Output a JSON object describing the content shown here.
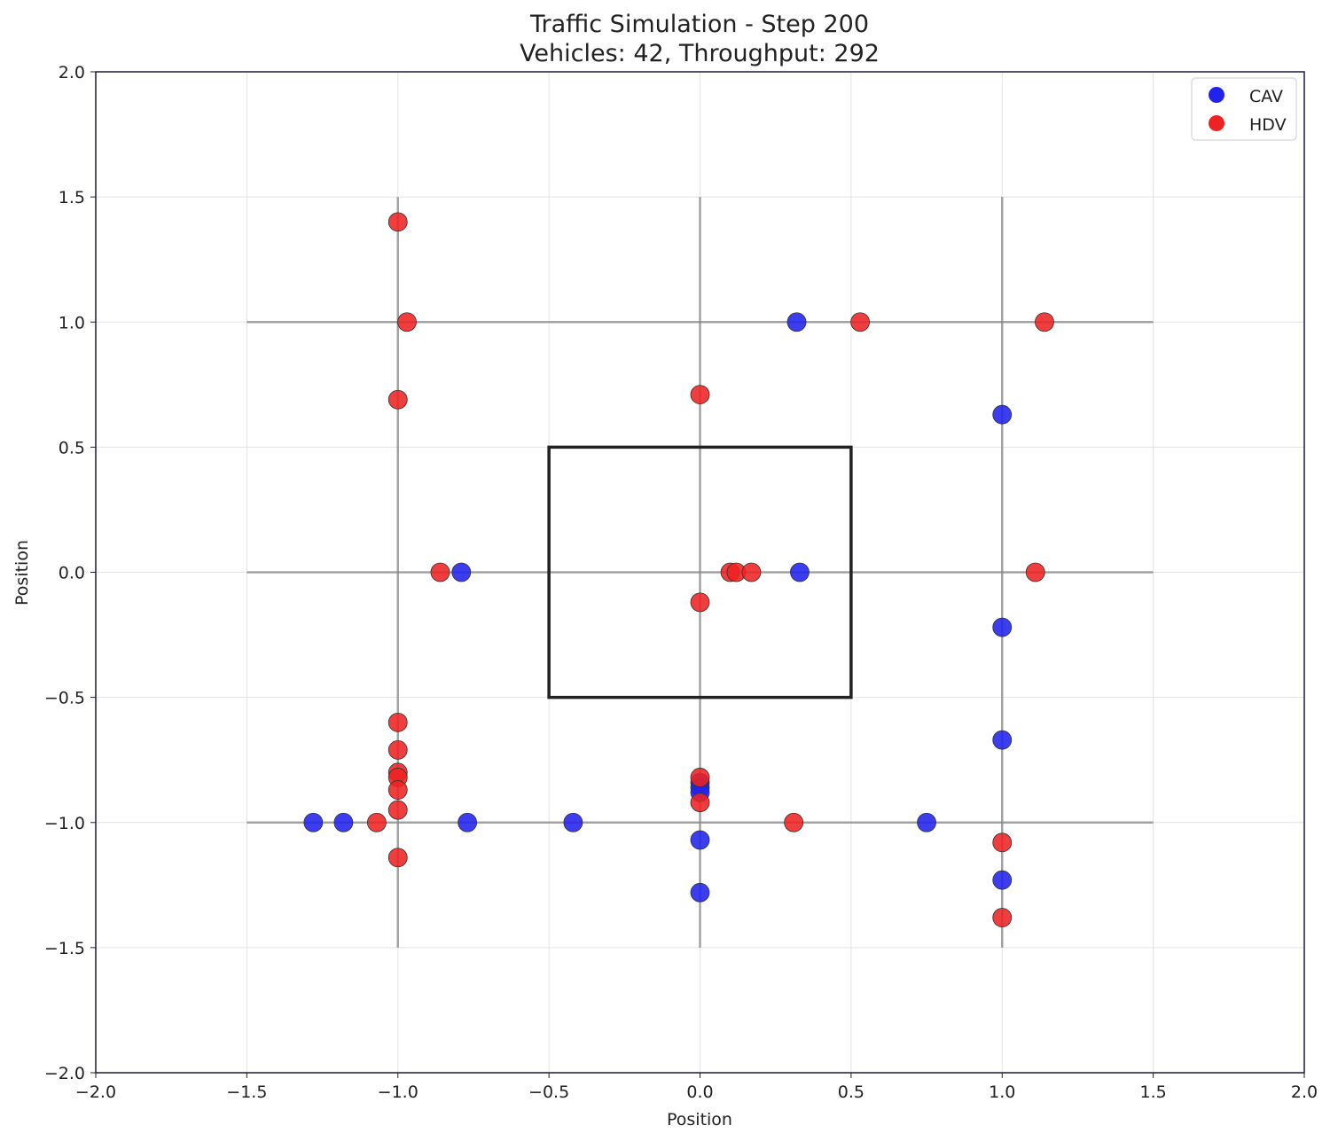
{
  "chart_data": {
    "type": "scatter",
    "title": "Traffic Simulation - Step 200",
    "subtitle": "Vehicles: 42, Throughput: 292",
    "xlabel": "Position",
    "ylabel": "Position",
    "xlim": [
      -2.0,
      2.0
    ],
    "ylim": [
      -2.0,
      2.0
    ],
    "xticks": [
      -2.0,
      -1.5,
      -1.0,
      -0.5,
      0.0,
      0.5,
      1.0,
      1.5,
      2.0
    ],
    "yticks": [
      -2.0,
      -1.5,
      -1.0,
      -0.5,
      0.0,
      0.5,
      1.0,
      1.5,
      2.0
    ],
    "xtick_labels": [
      "−2.0",
      "−1.5",
      "−1.0",
      "−0.5",
      "0.0",
      "0.5",
      "1.0",
      "1.5",
      "2.0"
    ],
    "ytick_labels": [
      "−2.0",
      "−1.5",
      "−1.0",
      "−0.5",
      "0.0",
      "0.5",
      "1.0",
      "1.5",
      "2.0"
    ],
    "grid": true,
    "legend_position": "top-right",
    "roads": {
      "horizontal": [
        {
          "y": 1.0,
          "x_from": -1.5,
          "x_to": 1.5
        },
        {
          "y": 0.0,
          "x_from": -1.5,
          "x_to": 1.5
        },
        {
          "y": -1.0,
          "x_from": -1.5,
          "x_to": 1.5
        }
      ],
      "vertical": [
        {
          "x": -1.0,
          "y_from": -1.5,
          "y_to": 1.5
        },
        {
          "x": 0.0,
          "y_from": -1.5,
          "y_to": 1.5
        },
        {
          "x": 1.0,
          "y_from": -1.5,
          "y_to": 1.5
        }
      ]
    },
    "center_box": {
      "x_min": -0.5,
      "x_max": 0.5,
      "y_min": -0.5,
      "y_max": 0.5
    },
    "series": [
      {
        "name": "CAV",
        "color": "#2222ee",
        "points": [
          [
            0.32,
            1.0
          ],
          [
            1.0,
            0.63
          ],
          [
            -0.79,
            0.0
          ],
          [
            0.33,
            0.0
          ],
          [
            1.0,
            -0.22
          ],
          [
            1.0,
            -0.67
          ],
          [
            -1.28,
            -1.0
          ],
          [
            -1.18,
            -1.0
          ],
          [
            -0.77,
            -1.0
          ],
          [
            -0.42,
            -1.0
          ],
          [
            0.75,
            -1.0
          ],
          [
            0.0,
            -0.84
          ],
          [
            0.0,
            -0.86
          ],
          [
            0.0,
            -0.88
          ],
          [
            0.0,
            -1.07
          ],
          [
            0.0,
            -1.28
          ],
          [
            1.0,
            -1.23
          ]
        ]
      },
      {
        "name": "HDV",
        "color": "#ee2222",
        "points": [
          [
            -1.0,
            1.4
          ],
          [
            -0.97,
            1.0
          ],
          [
            0.53,
            1.0
          ],
          [
            1.14,
            1.0
          ],
          [
            -1.0,
            0.69
          ],
          [
            0.0,
            0.71
          ],
          [
            -0.86,
            0.0
          ],
          [
            0.1,
            0.0
          ],
          [
            0.12,
            0.0
          ],
          [
            0.17,
            0.0
          ],
          [
            1.11,
            0.0
          ],
          [
            0.0,
            -0.12
          ],
          [
            -1.0,
            -0.6
          ],
          [
            -1.0,
            -0.71
          ],
          [
            -1.0,
            -0.8
          ],
          [
            -1.0,
            -0.82
          ],
          [
            -1.0,
            -0.87
          ],
          [
            -1.0,
            -0.95
          ],
          [
            -1.07,
            -1.0
          ],
          [
            -1.0,
            -1.14
          ],
          [
            0.0,
            -0.82
          ],
          [
            0.0,
            -0.92
          ],
          [
            0.31,
            -1.0
          ],
          [
            1.0,
            -1.08
          ],
          [
            1.0,
            -1.38
          ]
        ]
      }
    ]
  }
}
